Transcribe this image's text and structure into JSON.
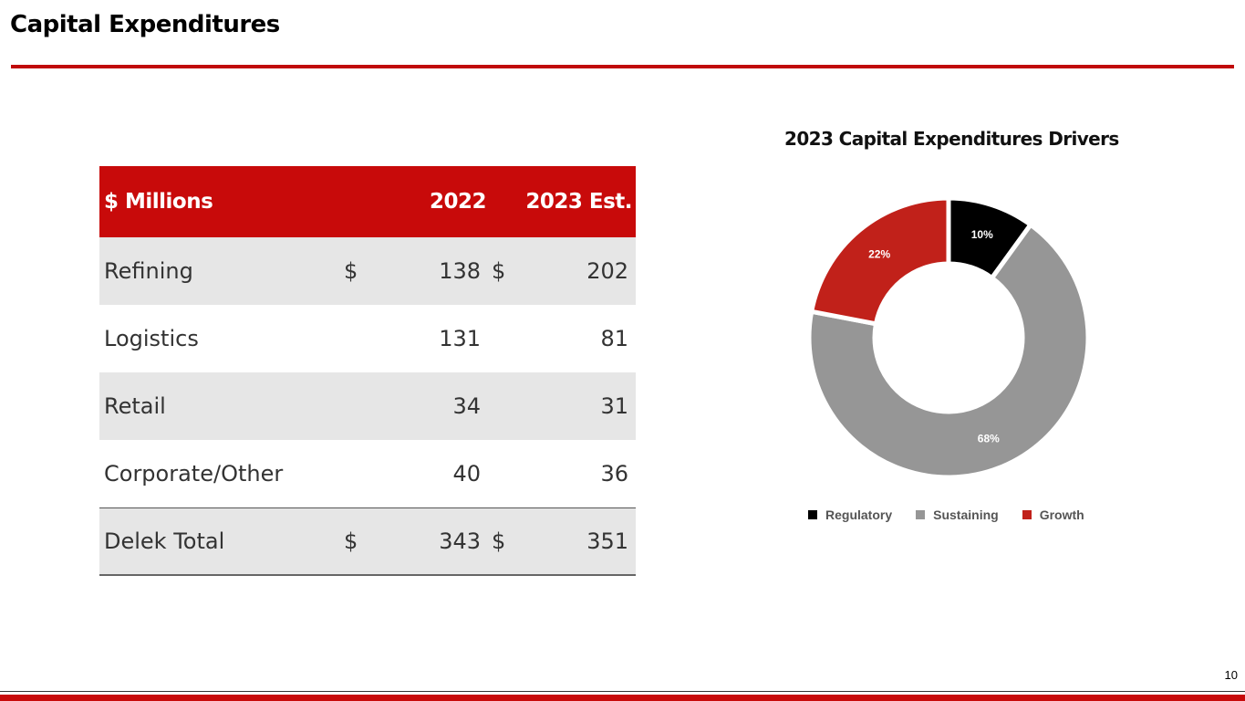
{
  "page": {
    "title": "Capital Expenditures",
    "page_number": "10",
    "accent_color": "#c80a0a"
  },
  "table": {
    "header": {
      "label": "$ Millions",
      "col1": "2022",
      "col2": "2023 Est."
    },
    "rows": [
      {
        "label": "Refining",
        "dollar1": "$",
        "v2022": "138",
        "dollar2": "$",
        "v2023": "202"
      },
      {
        "label": "Logistics",
        "dollar1": "",
        "v2022": "131",
        "dollar2": "",
        "v2023": "81"
      },
      {
        "label": "Retail",
        "dollar1": "",
        "v2022": "34",
        "dollar2": "",
        "v2023": "31"
      },
      {
        "label": "Corporate/Other",
        "dollar1": "",
        "v2022": "40",
        "dollar2": "",
        "v2023": "36"
      },
      {
        "label": "Delek Total",
        "dollar1": "$",
        "v2022": "343",
        "dollar2": "$",
        "v2023": "351"
      }
    ]
  },
  "chart_data": {
    "type": "pie",
    "title": "2023 Capital Expenditures Drivers",
    "donut": true,
    "legend_position": "bottom",
    "categories": [
      "Regulatory",
      "Sustaining",
      "Growth"
    ],
    "values": [
      10,
      68,
      22
    ],
    "labels": [
      "10%",
      "68%",
      "22%"
    ],
    "colors": [
      "#000000",
      "#969696",
      "#c1211a"
    ]
  }
}
